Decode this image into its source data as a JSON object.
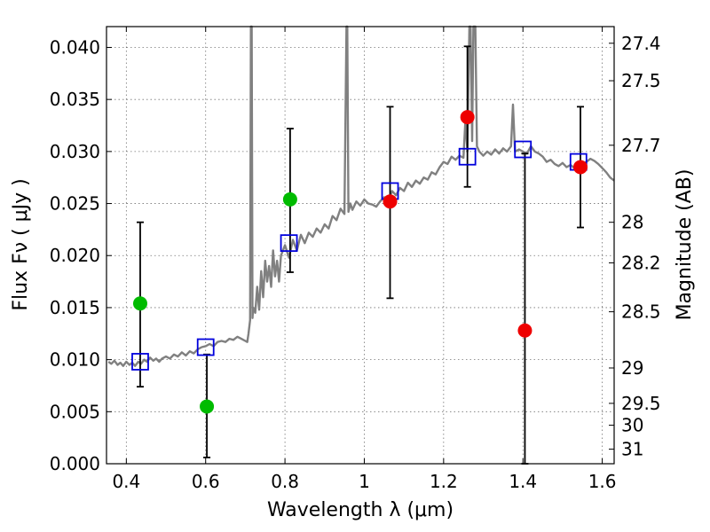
{
  "chart_data": {
    "type": "scatter",
    "title": "",
    "xlabel": "Wavelength  λ (μm)",
    "ylabel": "Flux  Fν  ( μJy )",
    "y2label": "Magnitude (AB)",
    "xlim": [
      0.35,
      1.63
    ],
    "ylim": [
      0.0,
      0.042
    ],
    "grid": true,
    "x_ticks": [
      {
        "value": 0.4,
        "label": "0.4"
      },
      {
        "value": 0.6,
        "label": "0.6"
      },
      {
        "value": 0.8,
        "label": "0.8"
      },
      {
        "value": 1.0,
        "label": "1"
      },
      {
        "value": 1.2,
        "label": "1.2"
      },
      {
        "value": 1.4,
        "label": "1.4"
      },
      {
        "value": 1.6,
        "label": "1.6"
      }
    ],
    "y_ticks": [
      {
        "value": 0.0,
        "label": "0.000"
      },
      {
        "value": 0.005,
        "label": "0.005"
      },
      {
        "value": 0.01,
        "label": "0.010"
      },
      {
        "value": 0.015,
        "label": "0.015"
      },
      {
        "value": 0.02,
        "label": "0.020"
      },
      {
        "value": 0.025,
        "label": "0.025"
      },
      {
        "value": 0.03,
        "label": "0.030"
      },
      {
        "value": 0.035,
        "label": "0.035"
      },
      {
        "value": 0.04,
        "label": "0.040"
      }
    ],
    "y2_ticks": [
      {
        "label": "27.4",
        "flux": 0.0404
      },
      {
        "label": "27.5",
        "flux": 0.0368
      },
      {
        "label": "27.7",
        "flux": 0.0306
      },
      {
        "label": "28",
        "flux": 0.0232
      },
      {
        "label": "28.2",
        "flux": 0.0193
      },
      {
        "label": "28.5",
        "flux": 0.0146
      },
      {
        "label": "29",
        "flux": 0.0092
      },
      {
        "label": "29.5",
        "flux": 0.0058
      },
      {
        "label": "30",
        "flux": 0.0037
      },
      {
        "label": "31",
        "flux": 0.0014
      }
    ],
    "colors": {
      "model_line": "#808080",
      "model_points": "#0000dd",
      "green_points": "#00bb00",
      "red_points": "#ee0000",
      "errorbars": "#000000"
    },
    "series": [
      {
        "kind": "line",
        "points": [
          [
            0.355,
            0.0098
          ],
          [
            0.362,
            0.0096
          ],
          [
            0.37,
            0.0099
          ],
          [
            0.378,
            0.0095
          ],
          [
            0.385,
            0.0097
          ],
          [
            0.392,
            0.0094
          ],
          [
            0.4,
            0.0098
          ],
          [
            0.408,
            0.0095
          ],
          [
            0.415,
            0.0097
          ],
          [
            0.422,
            0.0094
          ],
          [
            0.43,
            0.0098
          ],
          [
            0.437,
            0.0096
          ],
          [
            0.445,
            0.01
          ],
          [
            0.452,
            0.0098
          ],
          [
            0.46,
            0.0102
          ],
          [
            0.468,
            0.0099
          ],
          [
            0.475,
            0.0101
          ],
          [
            0.483,
            0.0098
          ],
          [
            0.49,
            0.0101
          ],
          [
            0.5,
            0.0103
          ],
          [
            0.51,
            0.0101
          ],
          [
            0.52,
            0.0105
          ],
          [
            0.53,
            0.0103
          ],
          [
            0.54,
            0.0107
          ],
          [
            0.55,
            0.0104
          ],
          [
            0.56,
            0.0108
          ],
          [
            0.57,
            0.0106
          ],
          [
            0.58,
            0.011
          ],
          [
            0.59,
            0.0112
          ],
          [
            0.6,
            0.0113
          ],
          [
            0.61,
            0.0115
          ],
          [
            0.62,
            0.0113
          ],
          [
            0.63,
            0.0117
          ],
          [
            0.64,
            0.0118
          ],
          [
            0.65,
            0.0117
          ],
          [
            0.66,
            0.012
          ],
          [
            0.67,
            0.0119
          ],
          [
            0.68,
            0.0122
          ],
          [
            0.69,
            0.012
          ],
          [
            0.7,
            0.0118
          ],
          [
            0.705,
            0.0117
          ],
          [
            0.708,
            0.0125
          ],
          [
            0.712,
            0.0138
          ],
          [
            0.714,
            0.042
          ],
          [
            0.716,
            0.042
          ],
          [
            0.718,
            0.014
          ],
          [
            0.72,
            0.015
          ],
          [
            0.725,
            0.0145
          ],
          [
            0.73,
            0.017
          ],
          [
            0.735,
            0.0148
          ],
          [
            0.74,
            0.0185
          ],
          [
            0.745,
            0.016
          ],
          [
            0.75,
            0.0195
          ],
          [
            0.755,
            0.0175
          ],
          [
            0.76,
            0.019
          ],
          [
            0.765,
            0.017
          ],
          [
            0.77,
            0.0205
          ],
          [
            0.775,
            0.018
          ],
          [
            0.78,
            0.0195
          ],
          [
            0.785,
            0.0175
          ],
          [
            0.79,
            0.02
          ],
          [
            0.8,
            0.021
          ],
          [
            0.81,
            0.0198
          ],
          [
            0.82,
            0.0215
          ],
          [
            0.83,
            0.0205
          ],
          [
            0.84,
            0.022
          ],
          [
            0.85,
            0.0212
          ],
          [
            0.86,
            0.0222
          ],
          [
            0.87,
            0.0218
          ],
          [
            0.88,
            0.0226
          ],
          [
            0.89,
            0.0222
          ],
          [
            0.9,
            0.023
          ],
          [
            0.91,
            0.0226
          ],
          [
            0.92,
            0.0238
          ],
          [
            0.93,
            0.0234
          ],
          [
            0.94,
            0.0245
          ],
          [
            0.95,
            0.024
          ],
          [
            0.955,
            0.042
          ],
          [
            0.957,
            0.042
          ],
          [
            0.96,
            0.0242
          ],
          [
            0.965,
            0.025
          ],
          [
            0.97,
            0.0244
          ],
          [
            0.98,
            0.0252
          ],
          [
            0.99,
            0.0248
          ],
          [
            1.0,
            0.0254
          ],
          [
            1.01,
            0.025
          ],
          [
            1.02,
            0.0249
          ],
          [
            1.03,
            0.0247
          ],
          [
            1.04,
            0.0252
          ],
          [
            1.05,
            0.0256
          ],
          [
            1.06,
            0.0252
          ],
          [
            1.07,
            0.0262
          ],
          [
            1.08,
            0.0258
          ],
          [
            1.09,
            0.0265
          ],
          [
            1.1,
            0.0262
          ],
          [
            1.11,
            0.027
          ],
          [
            1.12,
            0.0266
          ],
          [
            1.13,
            0.0272
          ],
          [
            1.14,
            0.0269
          ],
          [
            1.15,
            0.0275
          ],
          [
            1.16,
            0.0273
          ],
          [
            1.17,
            0.028
          ],
          [
            1.18,
            0.0278
          ],
          [
            1.19,
            0.0285
          ],
          [
            1.2,
            0.029
          ],
          [
            1.21,
            0.0288
          ],
          [
            1.22,
            0.0295
          ],
          [
            1.23,
            0.0292
          ],
          [
            1.24,
            0.0296
          ],
          [
            1.25,
            0.0294
          ],
          [
            1.255,
            0.033
          ],
          [
            1.26,
            0.03
          ],
          [
            1.265,
            0.042
          ],
          [
            1.268,
            0.042
          ],
          [
            1.272,
            0.031
          ],
          [
            1.275,
            0.042
          ],
          [
            1.28,
            0.042
          ],
          [
            1.284,
            0.0305
          ],
          [
            1.29,
            0.03
          ],
          [
            1.3,
            0.0296
          ],
          [
            1.31,
            0.03
          ],
          [
            1.32,
            0.0297
          ],
          [
            1.33,
            0.0302
          ],
          [
            1.34,
            0.0298
          ],
          [
            1.35,
            0.0303
          ],
          [
            1.36,
            0.03
          ],
          [
            1.37,
            0.0305
          ],
          [
            1.375,
            0.0345
          ],
          [
            1.38,
            0.03
          ],
          [
            1.39,
            0.0302
          ],
          [
            1.4,
            0.03
          ],
          [
            1.41,
            0.0298
          ],
          [
            1.42,
            0.0305
          ],
          [
            1.43,
            0.03
          ],
          [
            1.44,
            0.0298
          ],
          [
            1.45,
            0.0295
          ],
          [
            1.46,
            0.029
          ],
          [
            1.47,
            0.0292
          ],
          [
            1.48,
            0.0288
          ],
          [
            1.49,
            0.0286
          ],
          [
            1.5,
            0.0289
          ],
          [
            1.51,
            0.0285
          ],
          [
            1.52,
            0.0287
          ],
          [
            1.53,
            0.0284
          ],
          [
            1.54,
            0.0286
          ],
          [
            1.55,
            0.0288
          ],
          [
            1.56,
            0.029
          ],
          [
            1.57,
            0.0293
          ],
          [
            1.58,
            0.0291
          ],
          [
            1.59,
            0.0288
          ],
          [
            1.6,
            0.0284
          ],
          [
            1.61,
            0.028
          ],
          [
            1.62,
            0.0275
          ],
          [
            1.63,
            0.0272
          ]
        ]
      },
      {
        "kind": "open-square",
        "points": [
          {
            "x": 0.435,
            "y": 0.0098
          },
          {
            "x": 0.6,
            "y": 0.0112
          },
          {
            "x": 0.81,
            "y": 0.0212
          },
          {
            "x": 1.065,
            "y": 0.0262
          },
          {
            "x": 1.26,
            "y": 0.0295
          },
          {
            "x": 1.4,
            "y": 0.0302
          },
          {
            "x": 1.54,
            "y": 0.029
          }
        ]
      },
      {
        "kind": "filled-circle",
        "color": "green",
        "points": [
          {
            "x": 0.435,
            "y": 0.0154,
            "yerr_low": 0.0074,
            "yerr_high": 0.0232
          },
          {
            "x": 0.603,
            "y": 0.0055,
            "yerr_low": 0.0006,
            "yerr_high": 0.0105
          },
          {
            "x": 0.813,
            "y": 0.0254,
            "yerr_low": 0.0184,
            "yerr_high": 0.0322
          }
        ]
      },
      {
        "kind": "filled-circle",
        "color": "red",
        "points": [
          {
            "x": 1.065,
            "y": 0.0252,
            "yerr_low": 0.0159,
            "yerr_high": 0.0343
          },
          {
            "x": 1.26,
            "y": 0.0333,
            "yerr_low": 0.0266,
            "yerr_high": 0.0401
          },
          {
            "x": 1.405,
            "y": 0.0128,
            "yerr_low": 0.0,
            "yerr_high": 0.0298
          },
          {
            "x": 1.545,
            "y": 0.0285,
            "yerr_low": 0.0227,
            "yerr_high": 0.0343
          }
        ]
      }
    ]
  }
}
